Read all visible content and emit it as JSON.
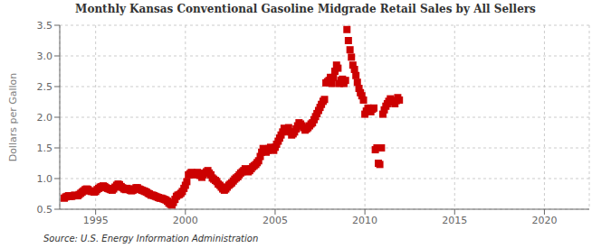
{
  "chart_data": {
    "type": "scatter",
    "title": "Monthly Kansas Conventional Gasoline Midgrade Retail Sales by All Sellers",
    "ylabel": "Dollars per Gallon",
    "annotations": [
      "Source: U.S. Energy Information Administration"
    ],
    "color": "#cc0000",
    "marker": "square",
    "grid": true,
    "xlim": [
      1993.0,
      2022.5
    ],
    "ylim": [
      0.5,
      3.5
    ],
    "xticks": [
      1995,
      2000,
      2005,
      2010,
      2015,
      2020
    ],
    "yticks": [
      0.5,
      {
        "value": 1.0,
        "label": "1.0"
      },
      1.5,
      {
        "value": 2.0,
        "label": "2.0"
      },
      2.5,
      {
        "value": 3.0,
        "label": "3.0"
      },
      3.5
    ],
    "x": [
      1993.25,
      1993.33,
      1993.42,
      1993.5,
      1993.58,
      1993.67,
      1993.75,
      1993.83,
      1993.92,
      1994.0,
      1994.08,
      1994.17,
      1994.25,
      1994.33,
      1994.42,
      1994.5,
      1994.58,
      1994.67,
      1994.75,
      1994.83,
      1994.92,
      1995.0,
      1995.08,
      1995.17,
      1995.25,
      1995.33,
      1995.42,
      1995.5,
      1995.58,
      1995.67,
      1995.75,
      1995.83,
      1995.92,
      1996.0,
      1996.08,
      1996.17,
      1996.25,
      1996.33,
      1996.42,
      1996.5,
      1996.58,
      1996.67,
      1996.75,
      1996.83,
      1996.92,
      1997.0,
      1997.08,
      1997.17,
      1997.25,
      1997.33,
      1997.42,
      1997.5,
      1997.58,
      1997.67,
      1997.75,
      1997.83,
      1997.92,
      1998.0,
      1998.08,
      1998.17,
      1998.25,
      1998.33,
      1998.42,
      1998.5,
      1998.58,
      1998.67,
      1998.75,
      1998.83,
      1998.92,
      1999.0,
      1999.08,
      1999.17,
      1999.25,
      1999.33,
      1999.42,
      1999.5,
      1999.58,
      1999.67,
      1999.75,
      1999.83,
      1999.92,
      2000.0,
      2000.08,
      2000.17,
      2000.25,
      2000.33,
      2000.42,
      2000.5,
      2000.58,
      2000.67,
      2000.75,
      2000.83,
      2000.92,
      2001.0,
      2001.08,
      2001.17,
      2001.25,
      2001.33,
      2001.42,
      2001.5,
      2001.58,
      2001.67,
      2001.75,
      2001.83,
      2001.92,
      2002.0,
      2002.08,
      2002.17,
      2002.25,
      2002.33,
      2002.42,
      2002.5,
      2002.58,
      2002.67,
      2002.75,
      2002.83,
      2002.92,
      2003.0,
      2003.08,
      2003.17,
      2003.25,
      2003.33,
      2003.42,
      2003.5,
      2003.58,
      2003.67,
      2003.75,
      2003.83,
      2003.92,
      2004.0,
      2004.08,
      2004.17,
      2004.25,
      2004.33,
      2004.42,
      2004.5,
      2004.58,
      2004.67,
      2004.75,
      2004.83,
      2004.92,
      2005.0,
      2005.08,
      2005.17,
      2005.25,
      2005.33,
      2005.42,
      2005.5,
      2005.58,
      2005.67,
      2005.75,
      2005.83,
      2005.92,
      2006.0,
      2006.08,
      2006.17,
      2006.25,
      2006.33,
      2006.42,
      2006.5,
      2006.58,
      2006.67,
      2006.75,
      2006.83,
      2006.92,
      2007.0,
      2007.08,
      2007.17,
      2007.25,
      2007.33,
      2007.42,
      2007.5,
      2007.58,
      2007.67,
      2007.75,
      2007.83,
      2007.92,
      2008.0,
      2008.08,
      2008.17,
      2008.25,
      2008.33,
      2008.42,
      2008.5,
      2008.58,
      2008.67,
      2008.75,
      2008.83,
      2008.92,
      2009.0,
      2009.08,
      2009.17,
      2009.25,
      2009.33,
      2009.42,
      2009.5,
      2009.58,
      2009.67,
      2009.75,
      2009.83,
      2009.92,
      2010.0,
      2010.08,
      2010.17,
      2010.25,
      2010.33,
      2010.42,
      2010.5,
      2010.58,
      2010.67,
      2010.75,
      2010.83,
      2010.92,
      2011.0,
      2011.08,
      2011.17,
      2011.25,
      2011.33,
      2011.42,
      2011.5,
      2011.58,
      2011.67,
      2011.75,
      2011.83,
      2011.92
    ],
    "values": [
      0.68,
      0.7,
      0.71,
      0.72,
      0.71,
      0.71,
      0.72,
      0.73,
      0.72,
      0.72,
      0.74,
      0.76,
      0.78,
      0.8,
      0.82,
      0.83,
      0.82,
      0.8,
      0.79,
      0.79,
      0.78,
      0.79,
      0.82,
      0.84,
      0.86,
      0.87,
      0.88,
      0.87,
      0.85,
      0.84,
      0.83,
      0.82,
      0.81,
      0.83,
      0.86,
      0.89,
      0.91,
      0.9,
      0.87,
      0.85,
      0.83,
      0.82,
      0.84,
      0.83,
      0.81,
      0.8,
      0.81,
      0.83,
      0.85,
      0.85,
      0.83,
      0.82,
      0.81,
      0.8,
      0.79,
      0.78,
      0.76,
      0.75,
      0.73,
      0.73,
      0.72,
      0.71,
      0.7,
      0.69,
      0.68,
      0.68,
      0.67,
      0.66,
      0.65,
      0.63,
      0.6,
      0.58,
      0.57,
      0.61,
      0.66,
      0.71,
      0.73,
      0.74,
      0.76,
      0.79,
      0.84,
      0.89,
      0.95,
      1.06,
      1.08,
      1.1,
      1.09,
      1.06,
      1.07,
      1.1,
      1.08,
      1.05,
      1.02,
      1.06,
      1.09,
      1.11,
      1.13,
      1.09,
      1.06,
      1.01,
      0.99,
      0.97,
      0.95,
      0.91,
      0.89,
      0.86,
      0.83,
      0.81,
      0.83,
      0.86,
      0.89,
      0.91,
      0.93,
      0.96,
      0.99,
      1.01,
      1.03,
      1.06,
      1.09,
      1.11,
      1.13,
      1.16,
      1.13,
      1.11,
      1.13,
      1.16,
      1.19,
      1.21,
      1.23,
      1.26,
      1.29,
      1.36,
      1.43,
      1.49,
      1.46,
      1.43,
      1.46,
      1.49,
      1.51,
      1.49,
      1.46,
      1.51,
      1.56,
      1.61,
      1.66,
      1.71,
      1.76,
      1.82,
      1.77,
      1.79,
      1.83,
      1.76,
      1.71,
      1.73,
      1.76,
      1.81,
      1.86,
      1.91,
      1.89,
      1.86,
      1.83,
      1.79,
      1.81,
      1.83,
      1.86,
      1.89,
      1.91,
      1.96,
      2.01,
      2.06,
      2.11,
      2.16,
      2.21,
      2.26,
      2.29,
      2.56,
      2.58,
      2.6,
      2.65,
      2.55,
      2.65,
      2.75,
      2.85,
      2.8,
      2.55,
      2.6,
      2.62,
      2.55,
      2.6,
      3.43,
      3.25,
      3.1,
      2.98,
      2.85,
      2.78,
      2.68,
      2.57,
      2.47,
      2.4,
      2.35,
      2.28,
      2.05,
      2.1,
      2.15,
      2.12,
      2.09,
      2.13,
      2.15,
      1.47,
      1.5,
      1.25,
      1.23,
      1.5,
      2.05,
      2.12,
      2.18,
      2.22,
      2.26,
      2.3,
      2.27,
      2.25,
      2.22,
      2.27,
      2.32,
      2.28
    ]
  }
}
